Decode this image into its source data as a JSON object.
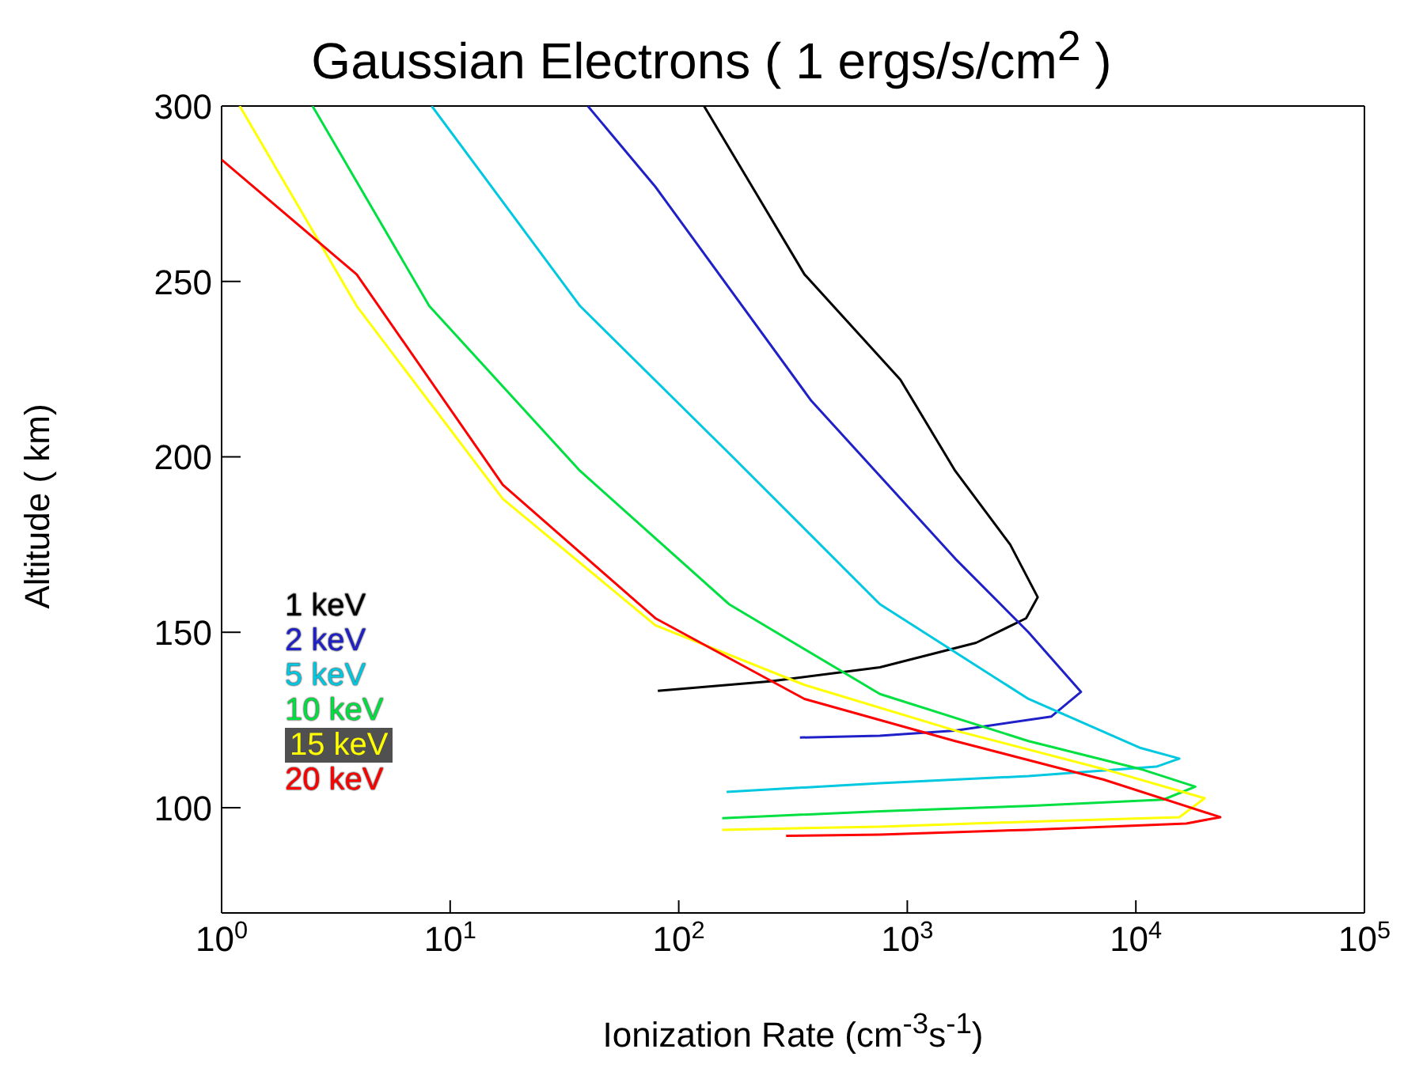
{
  "chart_data": {
    "type": "line",
    "title": "Gaussian Electrons ( 1 ergs/s/cm$^{2}$ )",
    "xlabel": "Ionization Rate (cm$^{-3}$s$^{-1}$)",
    "ylabel": "Altitude ( km)",
    "log": "x",
    "xlim": [
      1,
      100000
    ],
    "ylim": [
      70,
      300
    ],
    "xticks": [
      {
        "value": 1,
        "label": "10$^{0}$"
      },
      {
        "value": 10,
        "label": "10$^{1}$"
      },
      {
        "value": 100,
        "label": "10$^{2}$"
      },
      {
        "value": 1000,
        "label": "10$^{3}$"
      },
      {
        "value": 10000,
        "label": "10$^{4}$"
      },
      {
        "value": 100000,
        "label": "10$^{5}$"
      }
    ],
    "yticks": [
      100,
      150,
      200,
      250,
      300
    ],
    "grid": false,
    "legend": "bottom left",
    "marker": "none",
    "line_style": "solid",
    "series": [
      {
        "name": "1 keV",
        "color": "#000000",
        "x": [
          129,
          355,
          933,
          1620,
          2820,
          3720,
          3310,
          2000,
          759,
          251,
          81
        ],
        "values": [
          300,
          252,
          222,
          196,
          175,
          160,
          154,
          147,
          140,
          136,
          133.3
        ]
      },
      {
        "name": "2 keV",
        "color": "#2020c8",
        "x": [
          40,
          79,
          380,
          1620,
          3390,
          5750,
          4270,
          1620,
          759,
          339
        ],
        "values": [
          300,
          277,
          216,
          171,
          150,
          133,
          126,
          122,
          120.5,
          120
        ]
      },
      {
        "name": "5 keV",
        "color": "#00c8e0",
        "x": [
          8.3,
          37,
          166,
          759,
          3390,
          10500,
          15500,
          12300,
          3390,
          759,
          162
        ],
        "values": [
          300,
          243,
          201,
          158,
          131,
          117,
          114,
          111.7,
          109,
          107,
          104.5
        ]
      },
      {
        "name": "10 keV",
        "color": "#00e040",
        "x": [
          2.5,
          8.1,
          37,
          166,
          759,
          3390,
          10500,
          18200,
          13200,
          3390,
          759,
          155
        ],
        "values": [
          300,
          243,
          196,
          158,
          132.4,
          119,
          111,
          106,
          102.3,
          100.5,
          99,
          97
        ]
      },
      {
        "name": "15 keV",
        "color": "#ffff00",
        "x": [
          1.2,
          3.9,
          17,
          79,
          355,
          1620,
          7240,
          20000,
          15500,
          3390,
          759,
          155
        ],
        "values": [
          300,
          243,
          188,
          152,
          135,
          122,
          111,
          102.7,
          97.3,
          96,
          94.6,
          93.7
        ]
      },
      {
        "name": "20 keV",
        "color": "#ff0000",
        "x": [
          1,
          3.9,
          17,
          79,
          355,
          1620,
          7240,
          23400,
          16600,
          3390,
          759,
          295
        ],
        "values": [
          284.7,
          252,
          192,
          154,
          131,
          119,
          108,
          97.3,
          95.5,
          93.7,
          92.3,
          92
        ]
      }
    ]
  }
}
